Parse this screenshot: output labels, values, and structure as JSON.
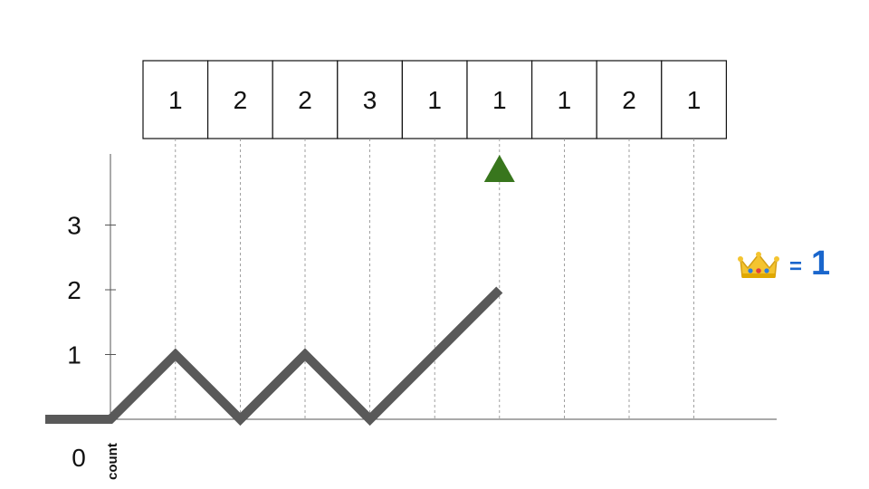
{
  "array": {
    "values": [
      "1",
      "2",
      "2",
      "3",
      "1",
      "1",
      "1",
      "2",
      "1"
    ],
    "pointer_index": 5
  },
  "graph": {
    "y_ticks": [
      "1",
      "2",
      "3"
    ],
    "origin_label": "0",
    "axis_caption": "count",
    "path_values": [
      0,
      0,
      1,
      0,
      1,
      0,
      1,
      2
    ]
  },
  "result": {
    "icon": "crown-icon",
    "equals": "=",
    "value": "1",
    "color": "#1a66cc"
  },
  "colors": {
    "pointer": "#38761d",
    "path": "#595959"
  }
}
